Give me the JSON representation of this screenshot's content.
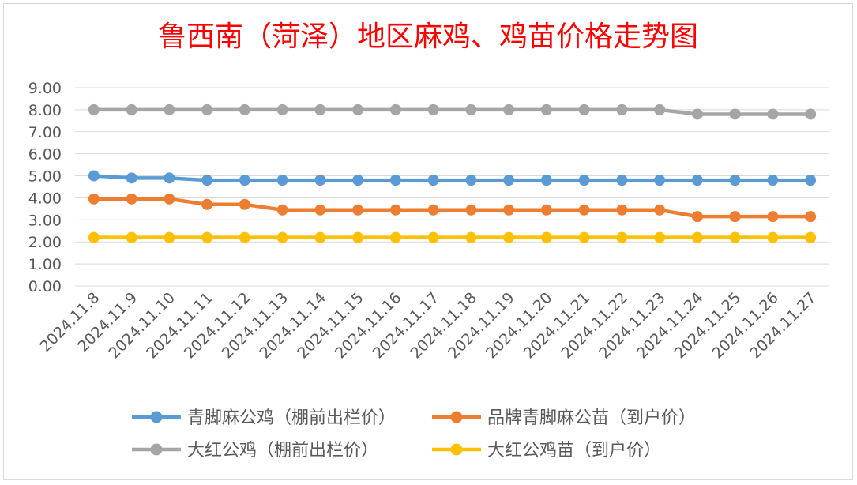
{
  "chart_data": {
    "type": "line",
    "title": "鲁西南（菏泽）地区麻鸡、鸡苗价格走势图",
    "xlabel": "",
    "ylabel": "",
    "ylim": [
      0,
      9
    ],
    "yticks": [
      "0.00",
      "1.00",
      "2.00",
      "3.00",
      "4.00",
      "5.00",
      "6.00",
      "7.00",
      "8.00",
      "9.00"
    ],
    "grid": true,
    "legend_position": "bottom",
    "categories": [
      "2024.11.8",
      "2024.11.9",
      "2024.11.10",
      "2024.11.11",
      "2024.11.12",
      "2024.11.13",
      "2024.11.14",
      "2024.11.15",
      "2024.11.16",
      "2024.11.17",
      "2024.11.18",
      "2024.11.19",
      "2024.11.20",
      "2024.11.21",
      "2024.11.22",
      "2024.11.23",
      "2024.11.24",
      "2024.11.25",
      "2024.11.26",
      "2024.11.27"
    ],
    "series": [
      {
        "name": "青脚麻公鸡（棚前出栏价）",
        "color": "#5B9BD5",
        "values": [
          5.0,
          4.9,
          4.9,
          4.8,
          4.8,
          4.8,
          4.8,
          4.8,
          4.8,
          4.8,
          4.8,
          4.8,
          4.8,
          4.8,
          4.8,
          4.8,
          4.8,
          4.8,
          4.8,
          4.8
        ]
      },
      {
        "name": "品牌青脚麻公苗（到户价）",
        "color": "#ED7D31",
        "values": [
          3.95,
          3.95,
          3.95,
          3.7,
          3.7,
          3.45,
          3.45,
          3.45,
          3.45,
          3.45,
          3.45,
          3.45,
          3.45,
          3.45,
          3.45,
          3.45,
          3.15,
          3.15,
          3.15,
          3.15
        ]
      },
      {
        "name": "大红公鸡（棚前出栏价）",
        "color": "#A5A5A5",
        "values": [
          8.0,
          8.0,
          8.0,
          8.0,
          8.0,
          8.0,
          8.0,
          8.0,
          8.0,
          8.0,
          8.0,
          8.0,
          8.0,
          8.0,
          8.0,
          8.0,
          7.8,
          7.8,
          7.8,
          7.8
        ]
      },
      {
        "name": "大红公鸡苗（到户价）",
        "color": "#FFC000",
        "values": [
          2.2,
          2.2,
          2.2,
          2.2,
          2.2,
          2.2,
          2.2,
          2.2,
          2.2,
          2.2,
          2.2,
          2.2,
          2.2,
          2.2,
          2.2,
          2.2,
          2.2,
          2.2,
          2.2,
          2.2
        ]
      }
    ],
    "title_color": "#FF0000",
    "text_color": "#595959",
    "grid_color": "#D9D9D9"
  }
}
